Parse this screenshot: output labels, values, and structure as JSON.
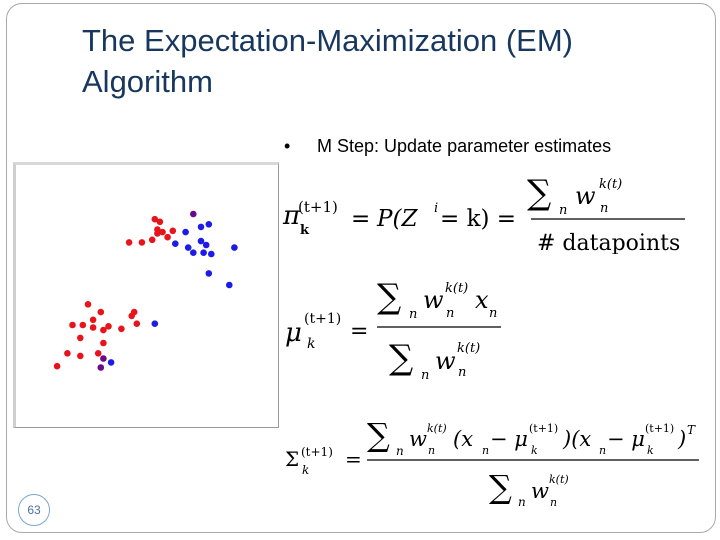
{
  "slide": {
    "title": "The Expectation-Maximization (EM) Algorithm",
    "bullet_marker": "•",
    "bullet_text": "M Step: Update parameter estimates",
    "page_number": "63"
  },
  "formulas": {
    "pi": {
      "lhs_symbol": "π",
      "lhs_sub": "k",
      "lhs_sup": "(t+1)",
      "equals": "=",
      "middle": "P(Z",
      "middle_sup": "i",
      "middle_end": " = k) =",
      "num_sum": "∑",
      "num_sum_sub": "n",
      "num_w": "w",
      "num_w_sup": "k(t)",
      "num_w_sub": "n",
      "den": "# datapoints"
    },
    "mu": {
      "lhs_symbol": "μ",
      "lhs_sub": "k",
      "lhs_sup": "(t+1)",
      "equals": "=",
      "num_sum": "∑",
      "num_sum_sub": "n",
      "num_w": "w",
      "num_w_sup": "k(t)",
      "num_w_sub": "n",
      "num_x": "x",
      "num_x_sub": "n",
      "den_sum": "∑",
      "den_sum_sub": "n",
      "den_w": "w",
      "den_w_sup": "k(t)",
      "den_w_sub": "n"
    },
    "sigma": {
      "lhs_symbol": "Σ",
      "lhs_sub": "k",
      "lhs_sup": "(t+1)",
      "equals": "=",
      "num_sum": "∑",
      "num_sum_sub": "n",
      "num_w": "w",
      "num_w_sup": "k(t)",
      "num_w_sub": "n",
      "num_p1": "(x",
      "num_p1_sub": "n",
      "num_minus1": " − μ",
      "num_mu1_sup": "(t+1)",
      "num_mu1_sub": "k",
      "num_p2": ")(x",
      "num_p2_sub": "n",
      "num_minus2": " − μ",
      "num_mu2_sup": "(t+1)",
      "num_mu2_sub": "k",
      "num_close": ")",
      "num_T": "T",
      "den_sum": "∑",
      "den_sum_sub": "n",
      "den_w": "w",
      "den_w_sup": "k(t)",
      "den_w_sub": "n"
    }
  },
  "chart_data": {
    "type": "scatter",
    "title": "",
    "xlabel": "",
    "ylabel": "",
    "xlim": [
      0,
      10
    ],
    "ylim": [
      0,
      10
    ],
    "grid": false,
    "colors": {
      "red": "#e8141c",
      "blue": "#1c1ce6",
      "purple": "#6a0a8a"
    },
    "series": [
      {
        "color": "red",
        "points": [
          [
            5.4,
            7.9
          ],
          [
            5.6,
            7.8
          ],
          [
            5.5,
            7.5
          ],
          [
            5.5,
            7.35
          ],
          [
            5.7,
            7.4
          ],
          [
            5.3,
            7.1
          ],
          [
            4.4,
            7.0
          ],
          [
            4.9,
            7.0
          ],
          [
            5.9,
            7.2
          ],
          [
            6.1,
            7.45
          ],
          [
            2.8,
            4.6
          ],
          [
            3.3,
            4.3
          ],
          [
            3.0,
            4.0
          ],
          [
            2.2,
            3.8
          ],
          [
            2.6,
            3.8
          ],
          [
            3.0,
            3.7
          ],
          [
            3.4,
            3.6
          ],
          [
            3.6,
            3.75
          ],
          [
            4.1,
            3.65
          ],
          [
            4.5,
            4.15
          ],
          [
            4.7,
            3.85
          ],
          [
            4.6,
            4.3
          ],
          [
            2.5,
            3.3
          ],
          [
            3.4,
            3.1
          ],
          [
            3.2,
            2.7
          ],
          [
            2.0,
            2.7
          ],
          [
            2.5,
            2.6
          ],
          [
            1.6,
            2.2
          ]
        ]
      },
      {
        "color": "blue",
        "points": [
          [
            6.6,
            7.4
          ],
          [
            7.2,
            7.6
          ],
          [
            7.5,
            7.7
          ],
          [
            6.7,
            6.8
          ],
          [
            7.2,
            7.05
          ],
          [
            7.4,
            6.9
          ],
          [
            6.9,
            6.6
          ],
          [
            7.3,
            6.6
          ],
          [
            7.6,
            6.55
          ],
          [
            8.5,
            6.8
          ],
          [
            6.2,
            6.95
          ],
          [
            7.5,
            5.8
          ],
          [
            8.3,
            5.35
          ],
          [
            5.4,
            3.85
          ],
          [
            3.7,
            2.35
          ]
        ]
      },
      {
        "color": "purple",
        "points": [
          [
            6.9,
            8.1
          ],
          [
            3.4,
            2.5
          ],
          [
            3.3,
            2.15
          ]
        ]
      }
    ]
  }
}
